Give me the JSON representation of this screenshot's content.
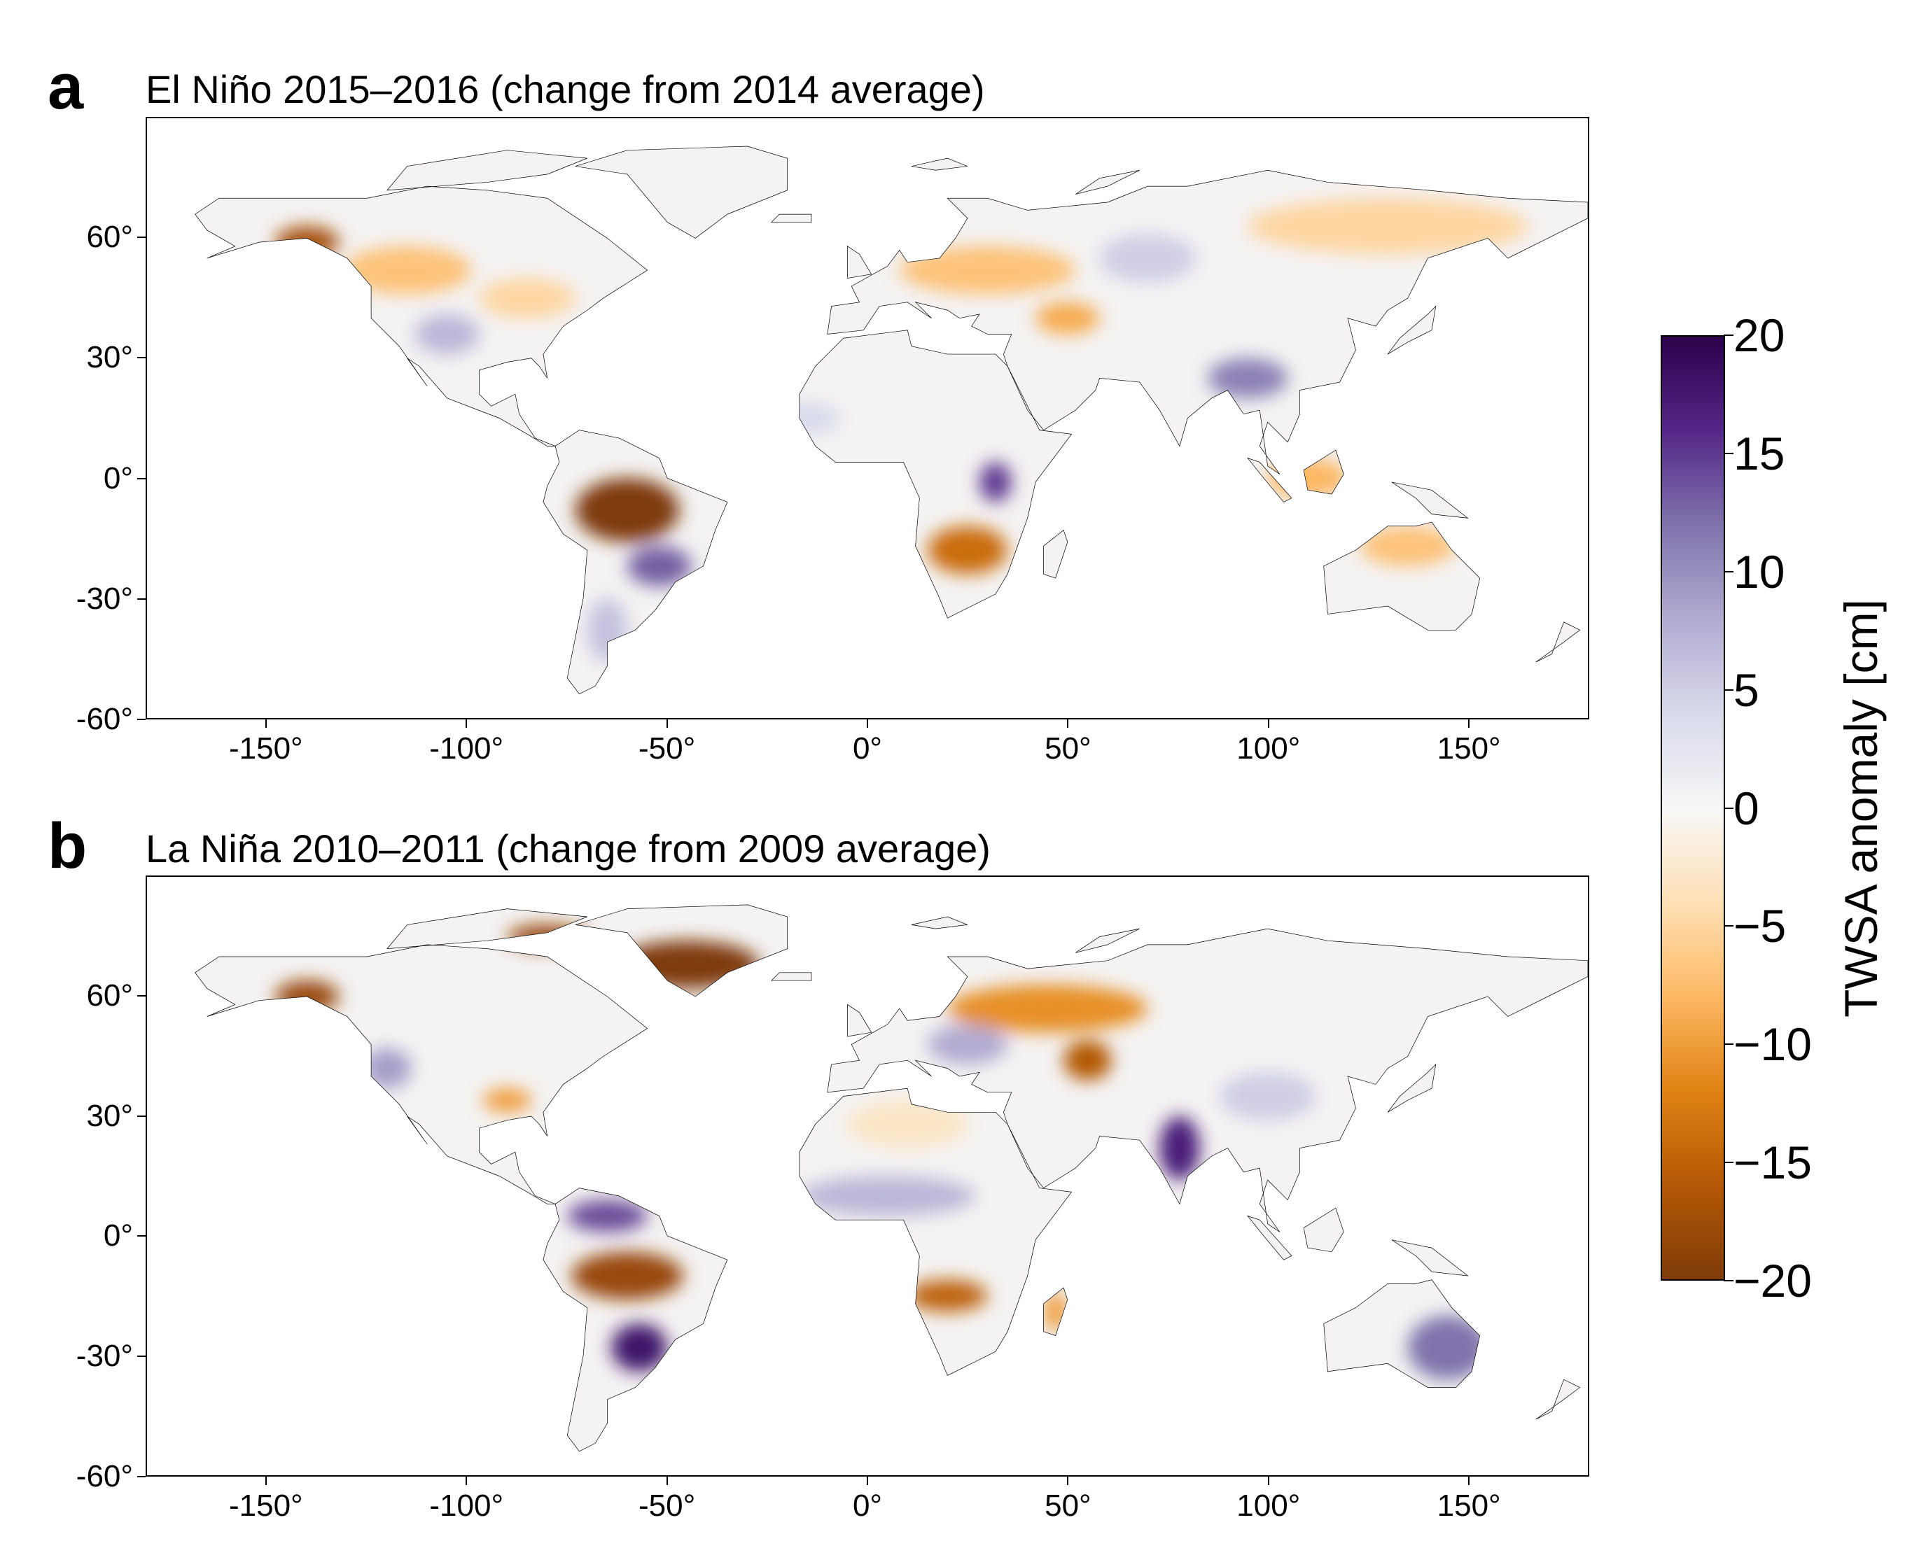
{
  "chart_data": [
    {
      "type": "heatmap",
      "panel_letter": "a",
      "title": "El Niño 2015–2016 (change from 2014 average)",
      "xlim": [
        -180,
        180
      ],
      "ylim": [
        -60,
        90
      ],
      "xticks": [
        {
          "v": -150,
          "label": "-150°"
        },
        {
          "v": -100,
          "label": "-100°"
        },
        {
          "v": -50,
          "label": "-50°"
        },
        {
          "v": 0,
          "label": "0°"
        },
        {
          "v": 50,
          "label": "50°"
        },
        {
          "v": 100,
          "label": "100°"
        },
        {
          "v": 150,
          "label": "150°"
        }
      ],
      "yticks": [
        {
          "v": 60,
          "label": "60°"
        },
        {
          "v": 30,
          "label": "30°"
        },
        {
          "v": 0,
          "label": "0°"
        },
        {
          "v": -30,
          "label": "-30°"
        },
        {
          "v": -60,
          "label": "-60°"
        }
      ],
      "regions": [
        {
          "lon": -60,
          "lat": -8,
          "rlon": 13,
          "rlat": 8,
          "value": -20
        },
        {
          "lon": 25,
          "lat": -18,
          "rlon": 10,
          "rlat": 6,
          "value": -14
        },
        {
          "lon": -140,
          "lat": 59,
          "rlon": 8,
          "rlat": 4,
          "value": -17
        },
        {
          "lon": -115,
          "lat": 52,
          "rlon": 16,
          "rlat": 6,
          "value": -7
        },
        {
          "lon": -85,
          "lat": 45,
          "rlon": 12,
          "rlat": 5,
          "value": -5
        },
        {
          "lon": -105,
          "lat": 36,
          "rlon": 8,
          "rlat": 5,
          "value": 7
        },
        {
          "lon": -52,
          "lat": -22,
          "rlon": 8,
          "rlat": 5,
          "value": 13
        },
        {
          "lon": -65,
          "lat": -38,
          "rlon": 5,
          "rlat": 8,
          "value": 6
        },
        {
          "lon": 32,
          "lat": -1,
          "rlon": 4,
          "rlat": 5,
          "value": 15
        },
        {
          "lon": 95,
          "lat": 25,
          "rlon": 10,
          "rlat": 5,
          "value": 11
        },
        {
          "lon": 30,
          "lat": 52,
          "rlon": 22,
          "rlat": 6,
          "value": -7
        },
        {
          "lon": 130,
          "lat": 63,
          "rlon": 35,
          "rlat": 7,
          "value": -5
        },
        {
          "lon": 135,
          "lat": -17,
          "rlon": 12,
          "rlat": 5,
          "value": -7
        },
        {
          "lon": 110,
          "lat": 0,
          "rlon": 10,
          "rlat": 5,
          "value": -8
        },
        {
          "lon": 70,
          "lat": 55,
          "rlon": 12,
          "rlat": 6,
          "value": 5
        },
        {
          "lon": -15,
          "lat": 15,
          "rlon": 8,
          "rlat": 4,
          "value": 4
        },
        {
          "lon": 50,
          "lat": 40,
          "rlon": 8,
          "rlat": 4,
          "value": -9
        }
      ]
    },
    {
      "type": "heatmap",
      "panel_letter": "b",
      "title": "La Niña 2010–2011 (change from 2009 average)",
      "xlim": [
        -180,
        180
      ],
      "ylim": [
        -60,
        90
      ],
      "xticks": [
        {
          "v": -150,
          "label": "-150°"
        },
        {
          "v": -100,
          "label": "-100°"
        },
        {
          "v": -50,
          "label": "-50°"
        },
        {
          "v": 0,
          "label": "0°"
        },
        {
          "v": 50,
          "label": "50°"
        },
        {
          "v": 100,
          "label": "100°"
        },
        {
          "v": 150,
          "label": "150°"
        }
      ],
      "yticks": [
        {
          "v": 60,
          "label": "60°"
        },
        {
          "v": 30,
          "label": "30°"
        },
        {
          "v": 0,
          "label": "0°"
        },
        {
          "v": -30,
          "label": "-30°"
        },
        {
          "v": -60,
          "label": "-60°"
        }
      ],
      "regions": [
        {
          "lon": -60,
          "lat": -10,
          "rlon": 14,
          "rlat": 6,
          "value": -18
        },
        {
          "lon": -65,
          "lat": 5,
          "rlon": 10,
          "rlat": 4,
          "value": 14
        },
        {
          "lon": -57,
          "lat": -28,
          "rlon": 7,
          "rlat": 6,
          "value": 18
        },
        {
          "lon": 20,
          "lat": -15,
          "rlon": 10,
          "rlat": 4,
          "value": -15
        },
        {
          "lon": 5,
          "lat": 10,
          "rlon": 22,
          "rlat": 5,
          "value": 7
        },
        {
          "lon": 78,
          "lat": 22,
          "rlon": 5,
          "rlat": 8,
          "value": 17
        },
        {
          "lon": 145,
          "lat": -28,
          "rlon": 10,
          "rlat": 8,
          "value": 12
        },
        {
          "lon": 45,
          "lat": 57,
          "rlon": 25,
          "rlat": 6,
          "value": -11
        },
        {
          "lon": 55,
          "lat": 44,
          "rlon": 6,
          "rlat": 5,
          "value": -16
        },
        {
          "lon": -45,
          "lat": 68,
          "rlon": 18,
          "rlat": 6,
          "value": -20
        },
        {
          "lon": -80,
          "lat": 75,
          "rlon": 10,
          "rlat": 3,
          "value": -18
        },
        {
          "lon": -140,
          "lat": 60,
          "rlon": 8,
          "rlat": 4,
          "value": -18
        },
        {
          "lon": -90,
          "lat": 34,
          "rlon": 6,
          "rlat": 3,
          "value": -10
        },
        {
          "lon": -120,
          "lat": 42,
          "rlon": 6,
          "rlat": 5,
          "value": 9
        },
        {
          "lon": 25,
          "lat": 48,
          "rlon": 10,
          "rlat": 5,
          "value": 8
        },
        {
          "lon": 100,
          "lat": 35,
          "rlon": 12,
          "rlat": 6,
          "value": 5
        },
        {
          "lon": 47,
          "lat": -19,
          "rlon": 3,
          "rlat": 5,
          "value": -10
        },
        {
          "lon": 10,
          "lat": 28,
          "rlon": 15,
          "rlat": 6,
          "value": -3
        }
      ]
    }
  ],
  "colorbar": {
    "label": "TWSA anomaly [cm]",
    "range": [
      -20,
      20
    ],
    "ticks": [
      {
        "v": 20,
        "label": "20"
      },
      {
        "v": 15,
        "label": "15"
      },
      {
        "v": 10,
        "label": "10"
      },
      {
        "v": 5,
        "label": "5"
      },
      {
        "v": 0,
        "label": "0"
      },
      {
        "v": -5,
        "label": "−5"
      },
      {
        "v": -10,
        "label": "−10"
      },
      {
        "v": -15,
        "label": "−15"
      },
      {
        "v": -20,
        "label": "−20"
      }
    ],
    "colors": [
      "#7f3b08",
      "#b35806",
      "#e08214",
      "#fdb863",
      "#fee0b6",
      "#f7f7f7",
      "#d8daeb",
      "#b2abd2",
      "#8073ac",
      "#542788",
      "#2d004b"
    ]
  }
}
